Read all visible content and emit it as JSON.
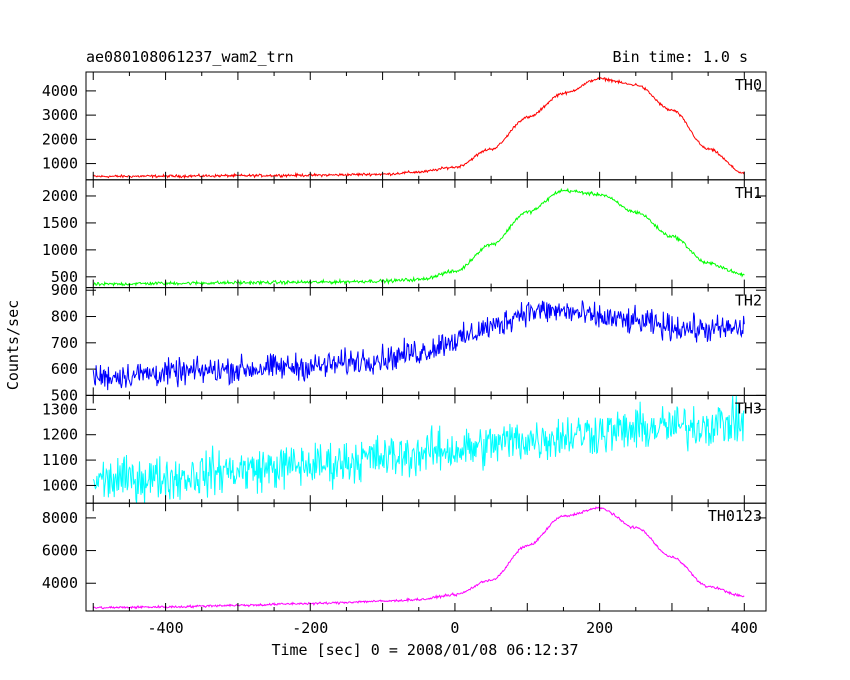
{
  "title_left": "ae080108061237_wam2_trn",
  "title_right": "Bin time: 1.0 s",
  "ylabel": "Counts/sec",
  "xlabel": "Time [sec] 0 = 2008/01/08 06:12:37",
  "chart_data": {
    "type": "line",
    "xlim": [
      -510,
      430
    ],
    "x_ticks": [
      -400,
      -200,
      0,
      200,
      400
    ],
    "grid": false,
    "panels": [
      {
        "name": "TH0",
        "color": "#ff0000",
        "ylim": [
          330,
          4780
        ],
        "y_ticks": [
          1000,
          2000,
          3000,
          4000
        ],
        "noise": 60,
        "points": [
          [
            -500,
            470
          ],
          [
            -400,
            480
          ],
          [
            -300,
            500
          ],
          [
            -200,
            520
          ],
          [
            -100,
            560
          ],
          [
            -50,
            650
          ],
          [
            0,
            850
          ],
          [
            50,
            1600
          ],
          [
            100,
            2900
          ],
          [
            150,
            3900
          ],
          [
            200,
            4500
          ],
          [
            250,
            4250
          ],
          [
            300,
            3200
          ],
          [
            350,
            1600
          ],
          [
            400,
            600
          ]
        ]
      },
      {
        "name": "TH1",
        "color": "#00ff00",
        "ylim": [
          300,
          2300
        ],
        "y_ticks": [
          500,
          1000,
          1500,
          2000
        ],
        "noise": 35,
        "points": [
          [
            -500,
            360
          ],
          [
            -400,
            380
          ],
          [
            -300,
            390
          ],
          [
            -200,
            400
          ],
          [
            -100,
            420
          ],
          [
            -50,
            450
          ],
          [
            0,
            600
          ],
          [
            50,
            1100
          ],
          [
            100,
            1700
          ],
          [
            150,
            2100
          ],
          [
            200,
            2030
          ],
          [
            250,
            1700
          ],
          [
            300,
            1250
          ],
          [
            350,
            750
          ],
          [
            400,
            540
          ]
        ]
      },
      {
        "name": "TH2",
        "color": "#0000ff",
        "ylim": [
          500,
          910
        ],
        "y_ticks": [
          500,
          600,
          700,
          800,
          900
        ],
        "noise": 55,
        "points": [
          [
            -500,
            570
          ],
          [
            -400,
            585
          ],
          [
            -300,
            600
          ],
          [
            -200,
            610
          ],
          [
            -100,
            640
          ],
          [
            -50,
            665
          ],
          [
            0,
            710
          ],
          [
            50,
            760
          ],
          [
            100,
            820
          ],
          [
            150,
            820
          ],
          [
            200,
            795
          ],
          [
            250,
            780
          ],
          [
            300,
            760
          ],
          [
            350,
            750
          ],
          [
            400,
            755
          ]
        ]
      },
      {
        "name": "TH3",
        "color": "#00ffff",
        "ylim": [
          930,
          1355
        ],
        "y_ticks": [
          1000,
          1100,
          1200,
          1300
        ],
        "noise": 95,
        "points": [
          [
            -500,
            1020
          ],
          [
            -400,
            1030
          ],
          [
            -300,
            1060
          ],
          [
            -200,
            1080
          ],
          [
            -100,
            1110
          ],
          [
            0,
            1140
          ],
          [
            100,
            1180
          ],
          [
            200,
            1210
          ],
          [
            300,
            1230
          ],
          [
            400,
            1250
          ]
        ]
      },
      {
        "name": "TH0123",
        "color": "#ff00ff",
        "ylim": [
          2300,
          8900
        ],
        "y_ticks": [
          4000,
          6000,
          8000
        ],
        "noise": 80,
        "points": [
          [
            -500,
            2500
          ],
          [
            -400,
            2550
          ],
          [
            -300,
            2650
          ],
          [
            -200,
            2760
          ],
          [
            -100,
            2900
          ],
          [
            -50,
            3000
          ],
          [
            0,
            3300
          ],
          [
            50,
            4200
          ],
          [
            100,
            6300
          ],
          [
            150,
            8100
          ],
          [
            200,
            8600
          ],
          [
            250,
            7400
          ],
          [
            300,
            5600
          ],
          [
            350,
            3800
          ],
          [
            400,
            3200
          ]
        ]
      }
    ]
  }
}
